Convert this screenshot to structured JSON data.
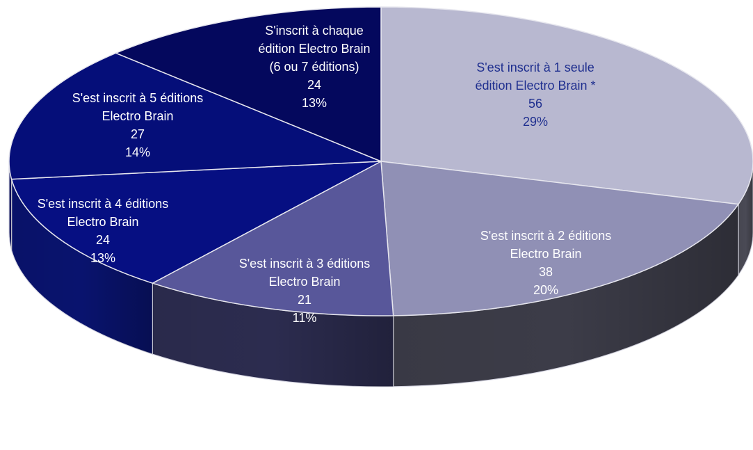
{
  "chart_data": {
    "type": "pie",
    "style": "3d",
    "title": "",
    "slices": [
      {
        "lines": [
          "S'est inscrit à 1 seule",
          "édition Electro Brain  *"
        ],
        "value": 56,
        "percent": "29%",
        "color": "#b8b8d0",
        "side_color": "#4a4a55",
        "label_color": "#1f2f8f"
      },
      {
        "lines": [
          "S'est inscrit à 2 éditions",
          "Electro Brain"
        ],
        "value": 38,
        "percent": "20%",
        "color": "#9090b5",
        "side_color": "#3c3c48",
        "label_color": "#ffffff"
      },
      {
        "lines": [
          "S'est inscrit à 3 éditions",
          "Electro Brain"
        ],
        "value": 21,
        "percent": "11%",
        "color": "#58579a",
        "side_color": "#2c2c4f",
        "label_color": "#ffffff"
      },
      {
        "lines": [
          "S'est inscrit à 4 éditions",
          "Electro Brain"
        ],
        "value": 24,
        "percent": "13%",
        "color": "#060f82",
        "side_color": "#09136e",
        "label_color": "#ffffff"
      },
      {
        "lines": [
          "S'est inscrit à 5 éditions",
          "Electro Brain"
        ],
        "value": 27,
        "percent": "14%",
        "color": "#050e79",
        "side_color": "#080f5f",
        "label_color": "#ffffff"
      },
      {
        "lines": [
          "S'inscrit à chaque",
          "édition Electro Brain",
          "(6 ou 7 éditions)"
        ],
        "value": 24,
        "percent": "13%",
        "color": "#04085d",
        "side_color": "#060a4c",
        "label_color": "#ffffff"
      }
    ]
  }
}
